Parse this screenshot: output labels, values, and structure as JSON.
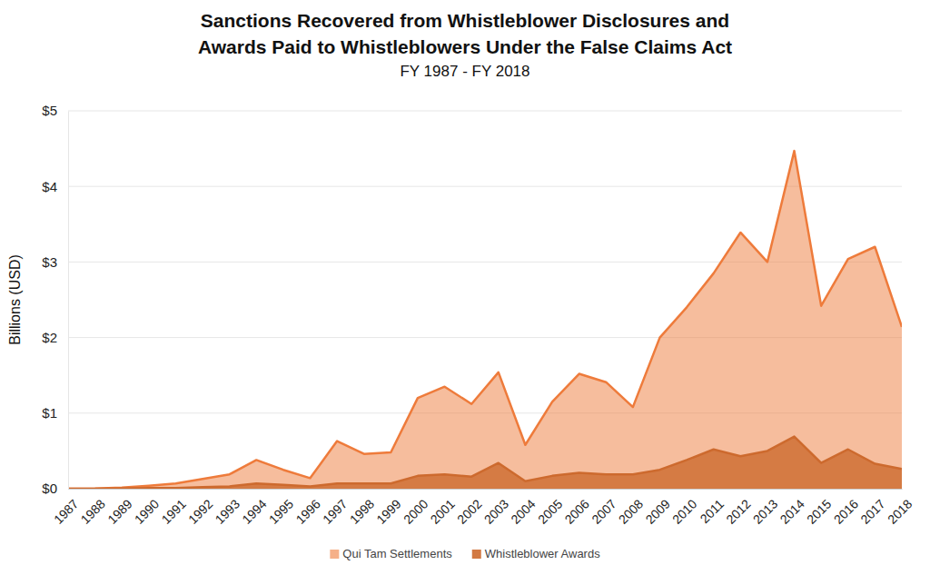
{
  "chart_data": {
    "type": "area",
    "title": [
      "Sanctions Recovered from Whistleblower Disclosures and",
      "Awards Paid to Whistleblowers Under the False Claims Act"
    ],
    "subtitle": "FY 1987 - FY 2018",
    "y_label": "Billions (USD)",
    "categories": [
      "1987",
      "1988",
      "1989",
      "1990",
      "1991",
      "1992",
      "1993",
      "1994",
      "1995",
      "1996",
      "1997",
      "1998",
      "1999",
      "2000",
      "2001",
      "2002",
      "2003",
      "2004",
      "2005",
      "2006",
      "2007",
      "2008",
      "2009",
      "2010",
      "2011",
      "2012",
      "2013",
      "2014",
      "2015",
      "2016",
      "2017",
      "2018"
    ],
    "series": [
      {
        "name": "Qui Tam Settlements",
        "color": "#ee7b3b",
        "values": [
          0,
          0.002,
          0.015,
          0.04,
          0.07,
          0.13,
          0.19,
          0.38,
          0.25,
          0.14,
          0.63,
          0.46,
          0.48,
          1.2,
          1.35,
          1.12,
          1.54,
          0.58,
          1.15,
          1.52,
          1.41,
          1.08,
          2.0,
          2.4,
          2.85,
          3.39,
          3.0,
          4.47,
          2.42,
          3.04,
          3.2,
          2.14
        ]
      },
      {
        "name": "Whistleblower Awards",
        "color": "#cd6a2e",
        "values": [
          0,
          0,
          0.002,
          0.01,
          0.01,
          0.02,
          0.03,
          0.07,
          0.05,
          0.03,
          0.07,
          0.07,
          0.07,
          0.17,
          0.19,
          0.16,
          0.34,
          0.1,
          0.17,
          0.21,
          0.19,
          0.19,
          0.25,
          0.38,
          0.52,
          0.43,
          0.5,
          0.69,
          0.34,
          0.52,
          0.33,
          0.26
        ]
      }
    ],
    "ylim": [
      0,
      5
    ],
    "yticks": [
      {
        "value": 0,
        "label": "$0"
      },
      {
        "value": 1,
        "label": "$1"
      },
      {
        "value": 2,
        "label": "$2"
      },
      {
        "value": 3,
        "label": "$3"
      },
      {
        "value": 4,
        "label": "$4"
      },
      {
        "value": 5,
        "label": "$5"
      }
    ],
    "stacked": false,
    "grid": true,
    "legend": "bottom"
  }
}
